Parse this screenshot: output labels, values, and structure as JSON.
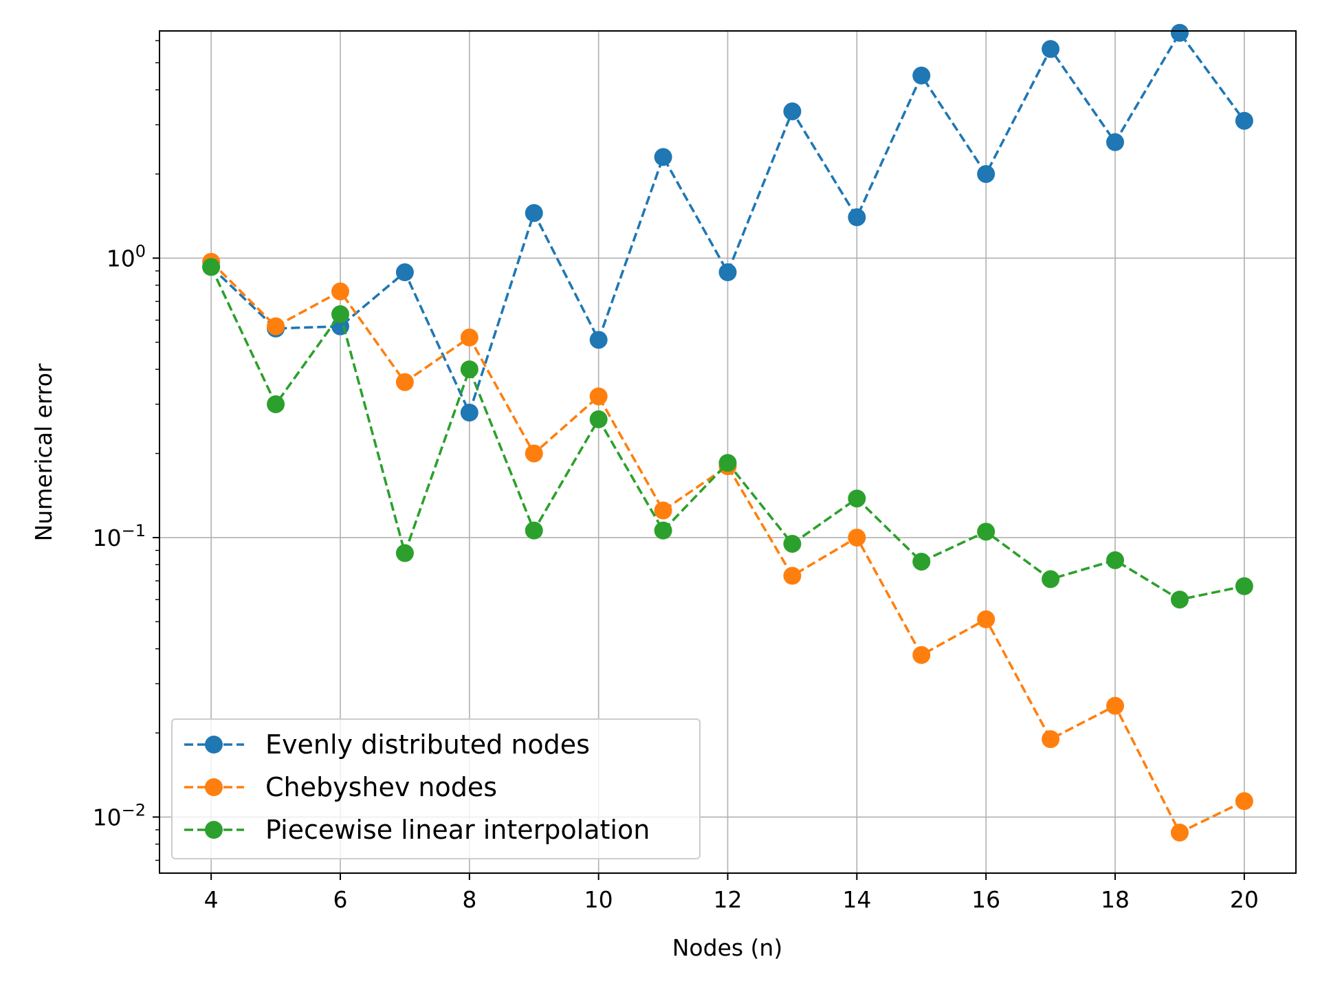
{
  "chart_data": {
    "type": "line",
    "title": "",
    "xlabel": "Nodes (n)",
    "ylabel": "Numerical error",
    "yscale": "log",
    "xlim": [
      3.2,
      20.8
    ],
    "ylim": [
      0.0063,
      6.5
    ],
    "xticks": [
      4,
      6,
      8,
      10,
      12,
      14,
      16,
      18,
      20
    ],
    "xtick_labels": [
      "4",
      "6",
      "8",
      "10",
      "12",
      "14",
      "16",
      "18",
      "20"
    ],
    "yticks": [
      0.01,
      0.1,
      1
    ],
    "ytick_labels": [
      {
        "base": "10",
        "exp": "−2"
      },
      {
        "base": "10",
        "exp": "−1"
      },
      {
        "base": "10",
        "exp": "0"
      }
    ],
    "grid": true,
    "legend_position": "lower-left",
    "line_style": "dashed",
    "marker": "circle",
    "x": [
      4,
      5,
      6,
      7,
      8,
      9,
      10,
      11,
      12,
      13,
      14,
      15,
      16,
      17,
      18,
      19,
      20
    ],
    "series": [
      {
        "name": "Evenly distributed nodes",
        "color": "#1f77b4",
        "values": [
          0.93,
          0.56,
          0.57,
          0.89,
          0.28,
          1.45,
          0.51,
          2.3,
          0.89,
          3.35,
          1.4,
          4.5,
          2.0,
          5.6,
          2.6,
          6.4,
          3.1
        ]
      },
      {
        "name": "Chebyshev nodes",
        "color": "#ff7f0e",
        "values": [
          0.97,
          0.57,
          0.76,
          0.36,
          0.52,
          0.2,
          0.32,
          0.125,
          0.18,
          0.073,
          0.1,
          0.038,
          0.051,
          0.019,
          0.025,
          0.0088,
          0.0114
        ]
      },
      {
        "name": "Piecewise linear interpolation",
        "color": "#2ca02c",
        "values": [
          0.93,
          0.3,
          0.63,
          0.088,
          0.4,
          0.106,
          0.265,
          0.106,
          0.185,
          0.095,
          0.138,
          0.082,
          0.105,
          0.071,
          0.083,
          0.06,
          0.067
        ]
      }
    ]
  }
}
